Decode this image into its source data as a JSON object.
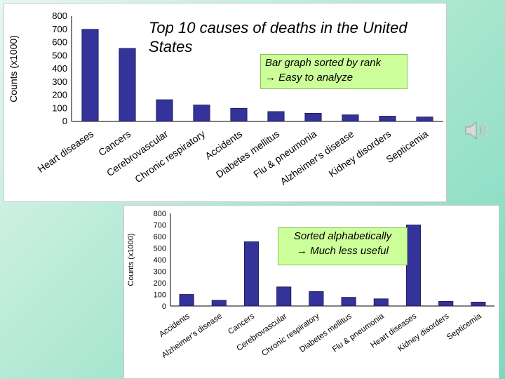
{
  "title": "Top 10 causes of deaths in the United States",
  "note_top": {
    "line1": "Bar graph sorted by rank",
    "line2": "Easy to analyze",
    "arrow": "→"
  },
  "note_bottom": {
    "line1": "Sorted alphabetically",
    "line2": "Much less useful",
    "arrow": "→"
  },
  "icons": {
    "speaker": "speaker-icon"
  },
  "colors": {
    "bar": "#333399",
    "bar_stroke": "#1a1a4d",
    "note_bg": "#ccff99"
  },
  "chart_data": [
    {
      "type": "bar",
      "title": "",
      "ylabel": "Counts (x1000)",
      "xlabel": "",
      "ylim": [
        0,
        800
      ],
      "yticks": [
        0,
        100,
        200,
        300,
        400,
        500,
        600,
        700,
        800
      ],
      "grid": false,
      "sort": "by rank",
      "categories": [
        "Heart diseases",
        "Cancers",
        "Cerebrovascular",
        "Chronic respiratory",
        "Accidents",
        "Diabetes mellitus",
        "Flu & pneumonia",
        "Alzheimer's disease",
        "Kidney disorders",
        "Septicemia"
      ],
      "values": [
        700,
        555,
        165,
        125,
        100,
        75,
        62,
        50,
        40,
        34
      ]
    },
    {
      "type": "bar",
      "title": "",
      "ylabel": "Counts (x1000)",
      "xlabel": "",
      "ylim": [
        0,
        800
      ],
      "yticks": [
        0,
        100,
        200,
        300,
        400,
        500,
        600,
        700,
        800
      ],
      "grid": false,
      "sort": "alphabetical",
      "categories": [
        "Accidents",
        "Alzheimer's disease",
        "Cancers",
        "Cerebrovascular",
        "Chronic respiratory",
        "Diabetes mellitus",
        "Flu & pneumonia",
        "Heart diseases",
        "Kidney disorders",
        "Septicemia"
      ],
      "values": [
        100,
        50,
        555,
        165,
        125,
        75,
        62,
        700,
        40,
        34
      ]
    }
  ]
}
